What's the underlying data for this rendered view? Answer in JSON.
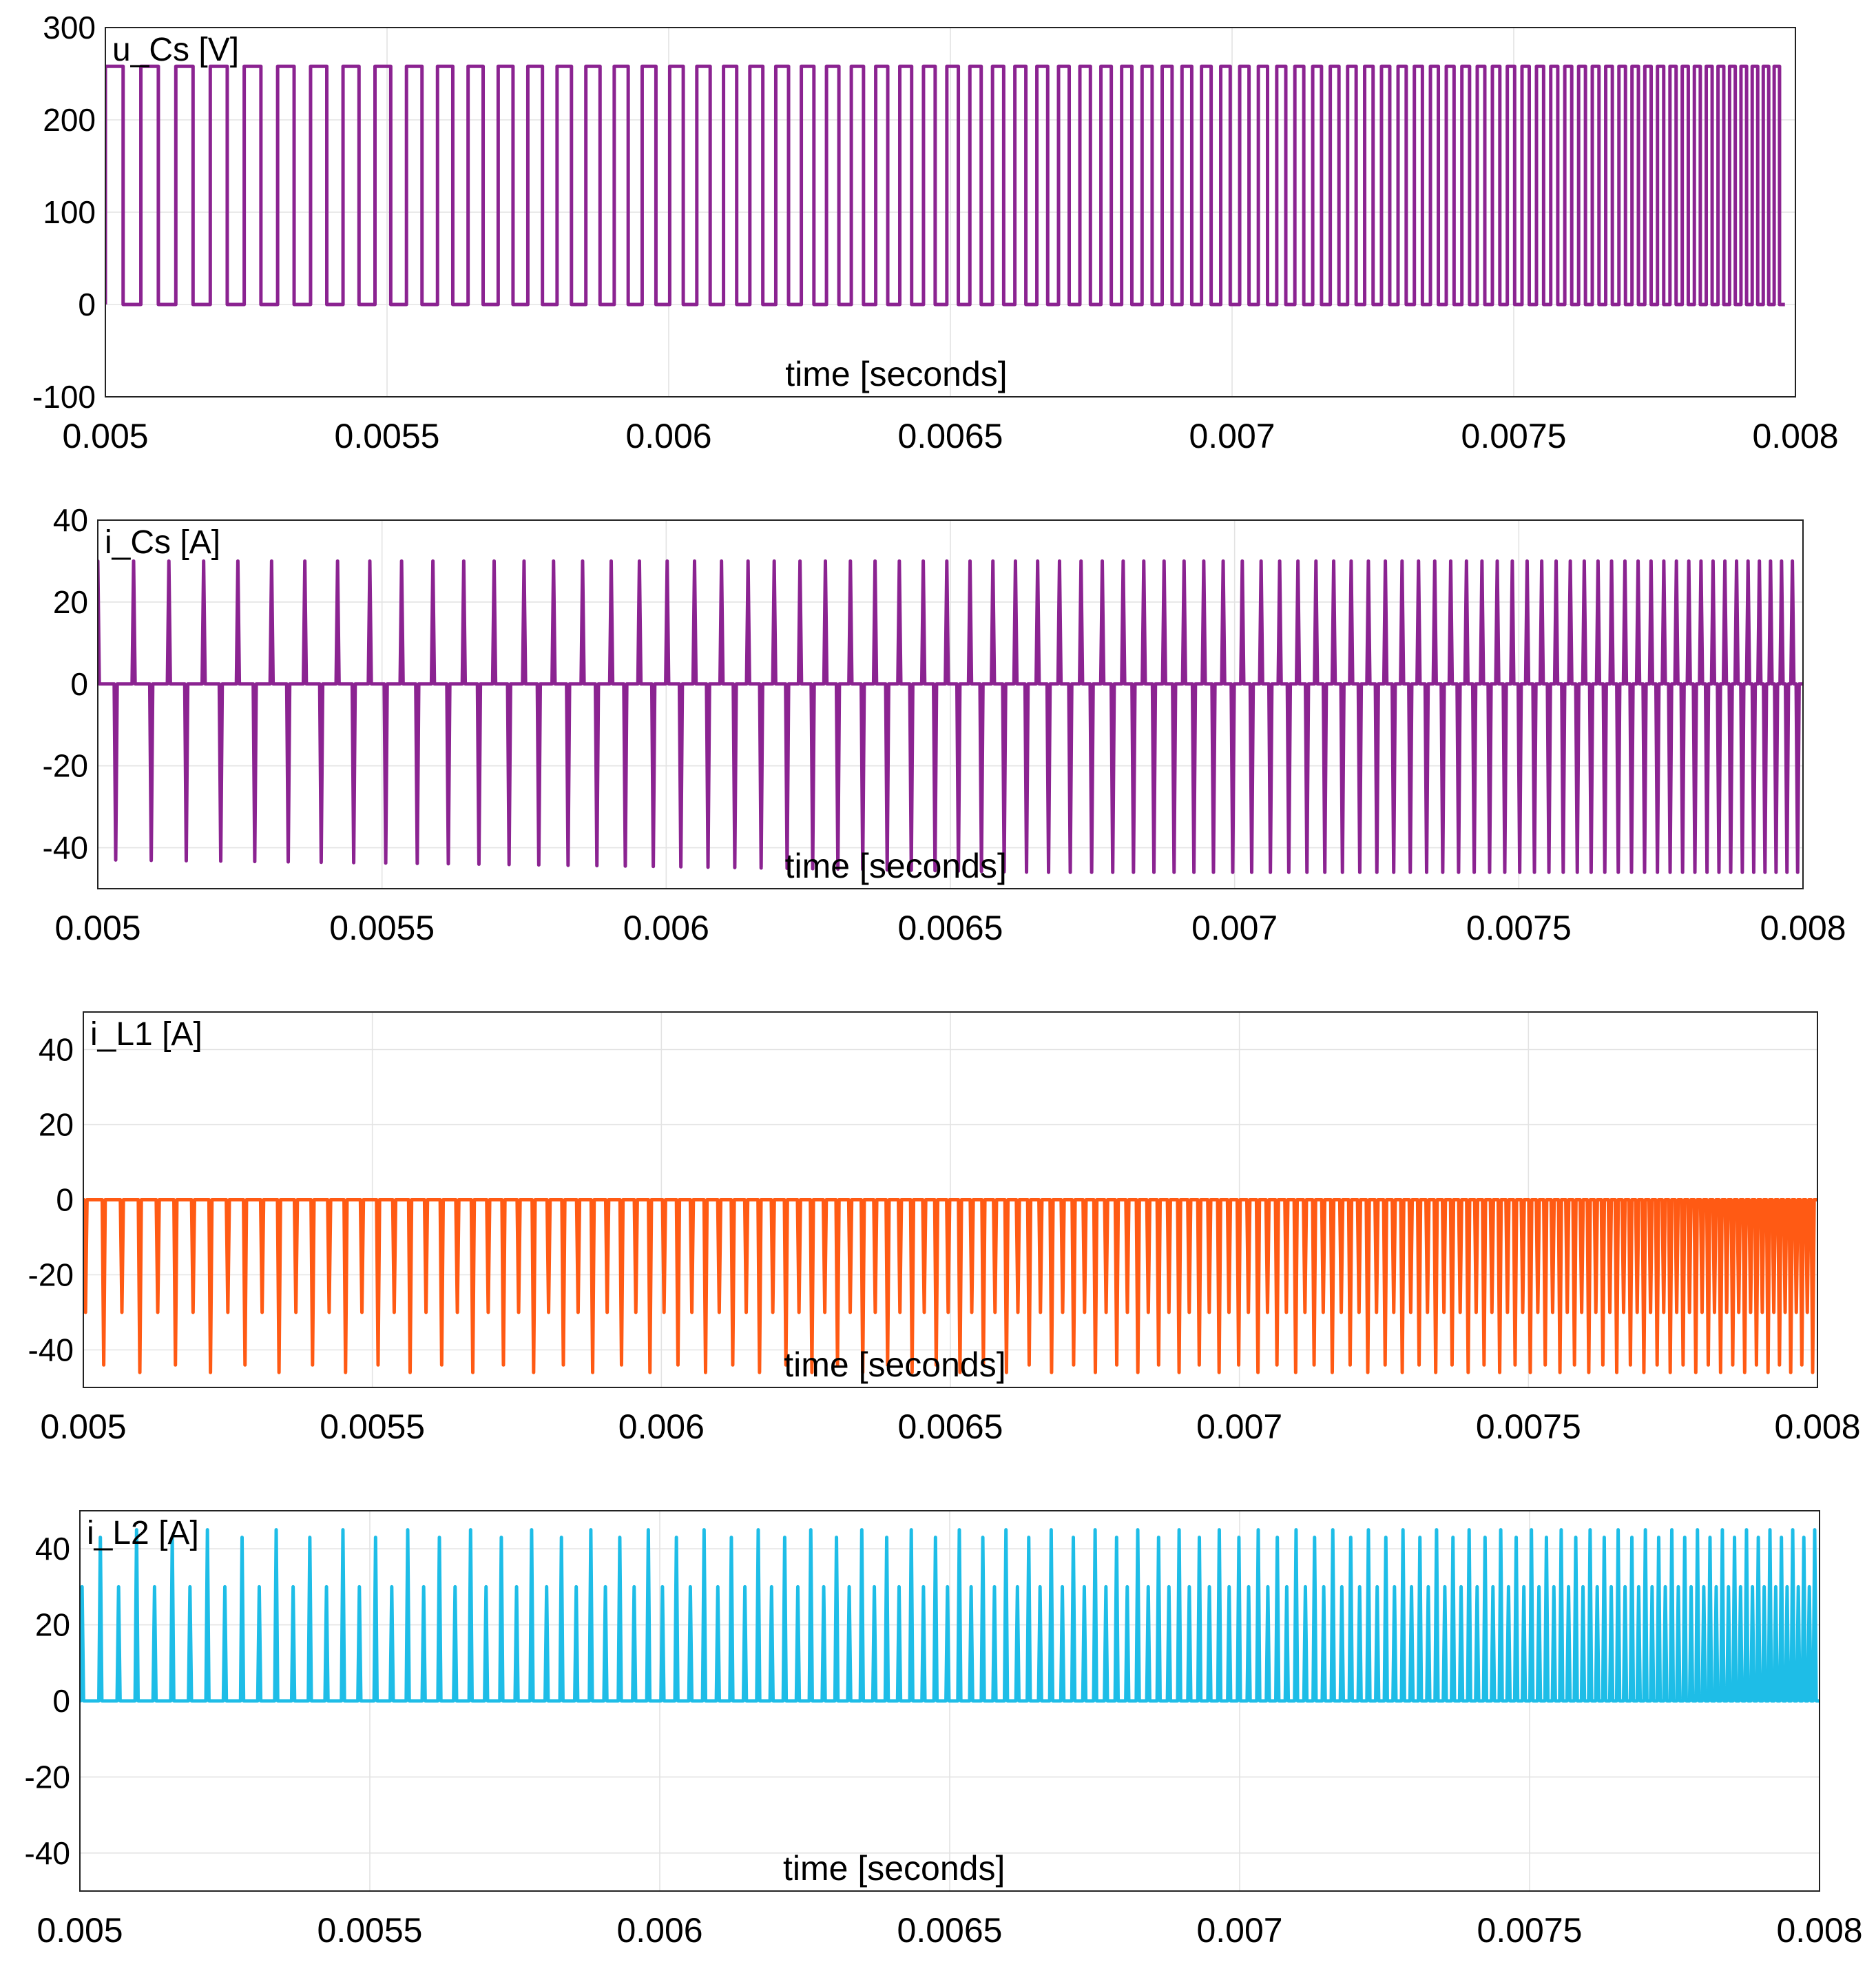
{
  "chart_data": [
    {
      "type": "line",
      "title": "u_Cs [V]",
      "xlabel": "time [seconds]",
      "ylabel": "",
      "xlim": [
        0.005,
        0.008
      ],
      "ylim": [
        -100,
        300
      ],
      "x_ticks": [
        0.005,
        0.0055,
        0.006,
        0.0065,
        0.007,
        0.0075,
        0.008
      ],
      "x_tick_labels": [
        "0.005",
        "0.0055",
        "0.006",
        "0.0065",
        "0.007",
        "0.0075",
        "0.008"
      ],
      "y_ticks": [
        -100,
        0,
        100,
        200,
        300
      ],
      "y_tick_labels": [
        "-100",
        "0",
        "100",
        "200",
        "300"
      ],
      "grid": true,
      "color": "#8B2391",
      "series": [
        {
          "name": "u_Cs",
          "waveform": "square",
          "low": 0,
          "high": 258,
          "t_start": 0.005,
          "t_end": 0.008,
          "start_period": 6.3e-05,
          "end_period": 1.85e-05,
          "duty": 0.5
        }
      ]
    },
    {
      "type": "line",
      "title": "i_Cs [A]",
      "xlabel": "time [seconds]",
      "ylabel": "",
      "xlim": [
        0.005,
        0.008
      ],
      "ylim": [
        -50,
        40
      ],
      "x_ticks": [
        0.005,
        0.0055,
        0.006,
        0.0065,
        0.007,
        0.0075,
        0.008
      ],
      "x_tick_labels": [
        "0.005",
        "0.0055",
        "0.006",
        "0.0065",
        "0.007",
        "0.0075",
        "0.008"
      ],
      "y_ticks": [
        -40,
        -20,
        0,
        20,
        40
      ],
      "y_tick_labels": [
        "-40",
        "-20",
        "0",
        "20",
        "40"
      ],
      "grid": true,
      "color": "#8B2391",
      "series": [
        {
          "name": "i_Cs",
          "waveform": "bipolar-spikes",
          "baseline": 0,
          "positive_peak": 30,
          "negative_peak_start": -43,
          "negative_peak_end": -46,
          "t_start": 0.005,
          "t_end": 0.008,
          "start_period": 6.3e-05,
          "end_period": 1.85e-05
        }
      ]
    },
    {
      "type": "line",
      "title": "i_L1 [A]",
      "xlabel": "time [seconds]",
      "ylabel": "",
      "xlim": [
        0.005,
        0.008
      ],
      "ylim": [
        -50,
        50
      ],
      "x_ticks": [
        0.005,
        0.0055,
        0.006,
        0.0065,
        0.007,
        0.0075,
        0.008
      ],
      "x_tick_labels": [
        "0.005",
        "0.0055",
        "0.006",
        "0.0065",
        "0.007",
        "0.0075",
        "0.008"
      ],
      "y_ticks": [
        -40,
        -20,
        0,
        20,
        40
      ],
      "y_tick_labels": [
        "-40",
        "-20",
        "0",
        "20",
        "40"
      ],
      "grid": true,
      "color": "#FF5A14",
      "series": [
        {
          "name": "i_L1",
          "waveform": "negative-spikes",
          "baseline": 0,
          "spike_levels": [
            -30,
            -44,
            -30,
            -46
          ],
          "t_start": 0.005,
          "t_end": 0.008,
          "start_period": 6.3e-05,
          "end_period": 1.85e-05
        }
      ]
    },
    {
      "type": "line",
      "title": "i_L2 [A]",
      "xlabel": "time [seconds]",
      "ylabel": "",
      "xlim": [
        0.005,
        0.008
      ],
      "ylim": [
        -50,
        50
      ],
      "x_ticks": [
        0.005,
        0.0055,
        0.006,
        0.0065,
        0.007,
        0.0075,
        0.008
      ],
      "x_tick_labels": [
        "0.005",
        "0.0055",
        "0.006",
        "0.0065",
        "0.007",
        "0.0075",
        "0.008"
      ],
      "y_ticks": [
        -40,
        -20,
        0,
        20,
        40
      ],
      "y_tick_labels": [
        "-40",
        "-20",
        "0",
        "20",
        "40"
      ],
      "grid": true,
      "color": "#1EBDE7",
      "series": [
        {
          "name": "i_L2",
          "waveform": "positive-spikes",
          "baseline": 0,
          "spike_levels": [
            30,
            43,
            30,
            45
          ],
          "t_start": 0.005,
          "t_end": 0.008,
          "start_period": 6.3e-05,
          "end_period": 1.85e-05
        }
      ]
    }
  ]
}
